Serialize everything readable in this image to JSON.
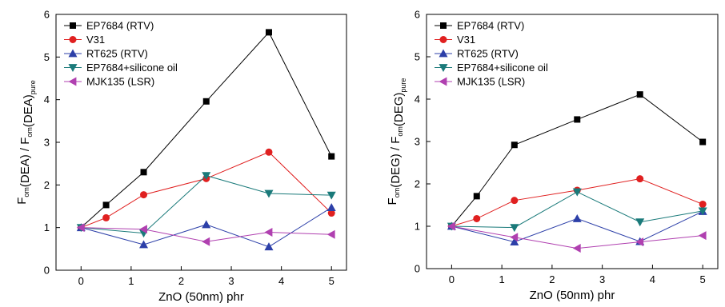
{
  "chart_data": [
    {
      "type": "line",
      "xlabel": "ZnO (50nm) phr",
      "ylabel": {
        "parts": [
          {
            "text": "F",
            "sub": "om"
          },
          {
            "text": "(DEA) / F",
            "sub": "om"
          },
          {
            "text": "(DEA)",
            "sub": "pure"
          }
        ]
      },
      "xlim": [
        -0.5,
        5.3
      ],
      "ylim": [
        0,
        6
      ],
      "xticks": [
        0,
        1,
        2,
        3,
        4,
        5
      ],
      "yticks": [
        0,
        1,
        2,
        3,
        4,
        5,
        6
      ],
      "legend_position": "top-left",
      "grid": false,
      "series": [
        {
          "name": "EP7684 (RTV)",
          "color": "#000000",
          "marker": "square",
          "x": [
            0,
            0.5,
            1.25,
            2.5,
            3.75,
            5
          ],
          "y": [
            1,
            1.53,
            2.3,
            3.96,
            5.58,
            2.67
          ]
        },
        {
          "name": "V31",
          "color": "#e02020",
          "marker": "circle",
          "x": [
            0,
            0.5,
            1.25,
            2.5,
            3.75,
            5
          ],
          "y": [
            1,
            1.23,
            1.77,
            2.15,
            2.77,
            1.34
          ]
        },
        {
          "name": "RT625 (RTV)",
          "color": "#2c3fa8",
          "marker": "triangle-up",
          "x": [
            0,
            1.25,
            2.5,
            3.75,
            5
          ],
          "y": [
            1,
            0.6,
            1.07,
            0.55,
            1.47
          ]
        },
        {
          "name": "EP7684+silicone oil",
          "color": "#1a7a7a",
          "marker": "triangle-down",
          "x": [
            0,
            1.25,
            2.5,
            3.75,
            5
          ],
          "y": [
            1,
            0.87,
            2.22,
            1.8,
            1.76
          ]
        },
        {
          "name": "MJK135 (LSR)",
          "color": "#b040b0",
          "marker": "triangle-left",
          "x": [
            0,
            1.25,
            2.5,
            3.75,
            5
          ],
          "y": [
            1,
            0.96,
            0.67,
            0.89,
            0.84
          ]
        }
      ]
    },
    {
      "type": "line",
      "xlabel": "ZnO (50nm) phr",
      "ylabel": {
        "parts": [
          {
            "text": "F",
            "sub": "om"
          },
          {
            "text": "(DEG) / F",
            "sub": "om"
          },
          {
            "text": "(DEG)",
            "sub": "pure"
          }
        ]
      },
      "xlim": [
        -0.5,
        5.3
      ],
      "ylim": [
        0,
        6
      ],
      "xticks": [
        0,
        1,
        2,
        3,
        4,
        5
      ],
      "yticks": [
        0,
        1,
        2,
        3,
        4,
        5,
        6
      ],
      "legend_position": "top-left",
      "grid": false,
      "series": [
        {
          "name": "EP7684 (RTV)",
          "color": "#000000",
          "marker": "square",
          "x": [
            0,
            0.5,
            1.25,
            2.5,
            3.75,
            5
          ],
          "y": [
            1,
            1.71,
            2.92,
            3.52,
            4.11,
            2.99
          ]
        },
        {
          "name": "V31",
          "color": "#e02020",
          "marker": "circle",
          "x": [
            0,
            0.5,
            1.25,
            2.5,
            3.75,
            5
          ],
          "y": [
            1,
            1.18,
            1.61,
            1.85,
            2.12,
            1.52
          ]
        },
        {
          "name": "RT625 (RTV)",
          "color": "#2c3fa8",
          "marker": "triangle-up",
          "x": [
            0,
            1.25,
            2.5,
            3.75,
            5
          ],
          "y": [
            1,
            0.63,
            1.18,
            0.64,
            1.35
          ]
        },
        {
          "name": "EP7684+silicone oil",
          "color": "#1a7a7a",
          "marker": "triangle-down",
          "x": [
            0,
            1.25,
            2.5,
            3.75,
            5
          ],
          "y": [
            1,
            0.97,
            1.81,
            1.1,
            1.36
          ]
        },
        {
          "name": "MJK135 (LSR)",
          "color": "#b040b0",
          "marker": "triangle-left",
          "x": [
            0,
            1.25,
            2.5,
            3.75,
            5
          ],
          "y": [
            1,
            0.74,
            0.48,
            0.63,
            0.78
          ]
        }
      ]
    }
  ]
}
